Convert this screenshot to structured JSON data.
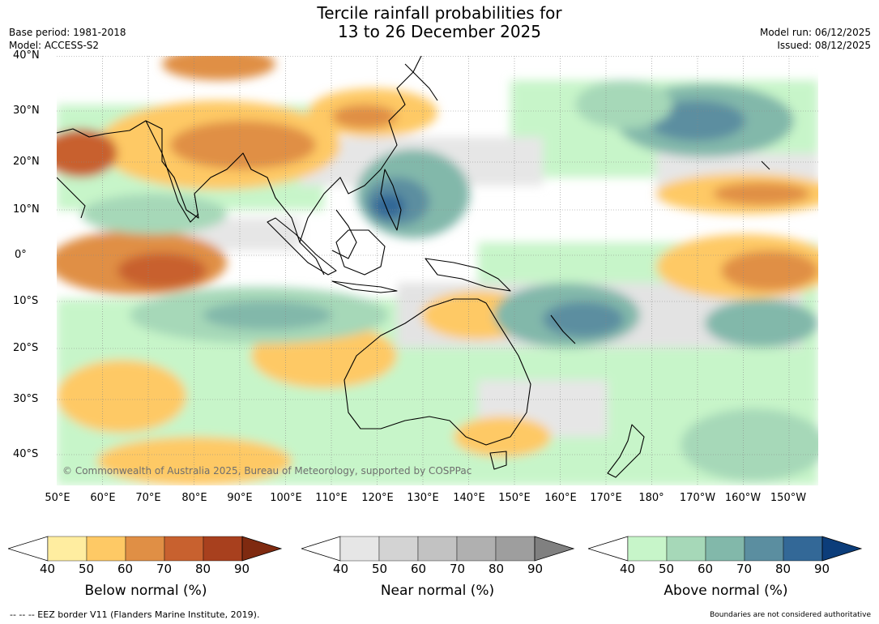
{
  "header": {
    "title_line1": "Tercile rainfall probabilities for",
    "title_line2": "13 to 26 December 2025",
    "base_period": "Base period: 1981-2018",
    "model": "Model: ACCESS-S2",
    "model_run": "Model run: 06/12/2025",
    "issued": "Issued: 08/12/2025"
  },
  "map": {
    "lat_labels": [
      "40°N",
      "30°N",
      "20°N",
      "10°N",
      "0°",
      "10°S",
      "20°S",
      "30°S",
      "40°S"
    ],
    "lon_labels": [
      "50°E",
      "60°E",
      "70°E",
      "80°E",
      "90°E",
      "100°E",
      "110°E",
      "120°E",
      "130°E",
      "140°E",
      "150°E",
      "160°E",
      "170°E",
      "180°",
      "170°W",
      "160°W",
      "150°W"
    ],
    "copyright": "© Commonwealth of Australia 2025, Bureau of Meteorology, supported by COSPPac",
    "grid": true
  },
  "colorbars": [
    {
      "title": "Below normal (%)",
      "ticks": [
        "40",
        "50",
        "60",
        "70",
        "80",
        "90"
      ],
      "colors": [
        "#ffffff",
        "#ffeda0",
        "#fec965",
        "#e08f45",
        "#c8612f",
        "#a8401e",
        "#7f2a10"
      ]
    },
    {
      "title": "Near normal (%)",
      "ticks": [
        "40",
        "50",
        "60",
        "70",
        "80",
        "90"
      ],
      "colors": [
        "#ffffff",
        "#e6e6e6",
        "#d3d3d3",
        "#c2c2c2",
        "#b0b0b0",
        "#9e9e9e",
        "#808080"
      ]
    },
    {
      "title": "Above normal (%)",
      "ticks": [
        "40",
        "50",
        "60",
        "70",
        "80",
        "90"
      ],
      "colors": [
        "#ffffff",
        "#c7f5c9",
        "#a6d8b8",
        "#82b8aa",
        "#5b8ea0",
        "#336897",
        "#0c3d7a"
      ]
    }
  ],
  "footer": {
    "eez_legend": "-- -- -- EEZ border V11 (Flanders Marine Institute, 2019).",
    "disclaimer": "Boundaries are not considered authoritative"
  }
}
